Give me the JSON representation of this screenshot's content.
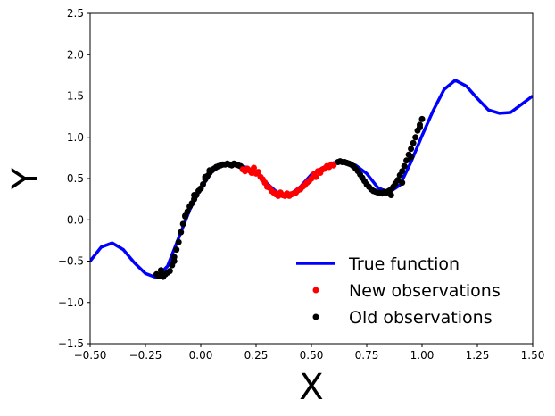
{
  "chart_data": {
    "type": "scatter",
    "title": "",
    "xlabel": "X",
    "ylabel": "Y",
    "xlim": [
      -0.5,
      1.5
    ],
    "ylim": [
      -1.5,
      2.5
    ],
    "xticks": [
      "−0.50",
      "−0.25",
      "0.00",
      "0.25",
      "0.50",
      "0.75",
      "1.00",
      "1.25",
      "1.50"
    ],
    "xtick_values": [
      -0.5,
      -0.25,
      0.0,
      0.25,
      0.5,
      0.75,
      1.0,
      1.25,
      1.5
    ],
    "yticks": [
      "−1.5",
      "−1.0",
      "−0.5",
      "0.0",
      "0.5",
      "1.0",
      "1.5",
      "2.0",
      "2.5"
    ],
    "ytick_values": [
      -1.5,
      -1.0,
      -0.5,
      0.0,
      0.5,
      1.0,
      1.5,
      2.0,
      2.5
    ],
    "grid": false,
    "legend_position": "lower-right",
    "series": [
      {
        "name": "True function",
        "kind": "line",
        "color": "#0000ff",
        "x": [
          -0.5,
          -0.45,
          -0.4,
          -0.35,
          -0.3,
          -0.25,
          -0.2,
          -0.15,
          -0.1,
          -0.05,
          0.0,
          0.05,
          0.1,
          0.15,
          0.2,
          0.25,
          0.3,
          0.35,
          0.4,
          0.45,
          0.5,
          0.55,
          0.6,
          0.65,
          0.7,
          0.75,
          0.8,
          0.85,
          0.9,
          0.95,
          1.0,
          1.05,
          1.1,
          1.15,
          1.2,
          1.25,
          1.3,
          1.35,
          1.4,
          1.45,
          1.5
        ],
        "y": [
          -0.5,
          -0.33,
          -0.28,
          -0.36,
          -0.52,
          -0.65,
          -0.7,
          -0.56,
          -0.22,
          0.12,
          0.38,
          0.58,
          0.67,
          0.67,
          0.64,
          0.57,
          0.44,
          0.32,
          0.3,
          0.4,
          0.55,
          0.63,
          0.69,
          0.7,
          0.66,
          0.56,
          0.39,
          0.33,
          0.42,
          0.7,
          1.02,
          1.32,
          1.58,
          1.69,
          1.62,
          1.47,
          1.33,
          1.29,
          1.3,
          1.4,
          1.5
        ]
      },
      {
        "name": "New observations",
        "kind": "scatter",
        "color": "#ff0000",
        "x": [
          0.19,
          0.2,
          0.21,
          0.22,
          0.23,
          0.24,
          0.25,
          0.26,
          0.27,
          0.28,
          0.29,
          0.3,
          0.31,
          0.32,
          0.33,
          0.34,
          0.35,
          0.36,
          0.37,
          0.38,
          0.39,
          0.4,
          0.41,
          0.42,
          0.43,
          0.44,
          0.45,
          0.46,
          0.47,
          0.48,
          0.49,
          0.5,
          0.51,
          0.52,
          0.53,
          0.54,
          0.55,
          0.56,
          0.57,
          0.58,
          0.59,
          0.6
        ],
        "y": [
          0.61,
          0.59,
          0.62,
          0.6,
          0.57,
          0.63,
          0.56,
          0.58,
          0.52,
          0.49,
          0.45,
          0.4,
          0.39,
          0.35,
          0.33,
          0.31,
          0.29,
          0.33,
          0.3,
          0.29,
          0.32,
          0.29,
          0.31,
          0.32,
          0.33,
          0.36,
          0.37,
          0.4,
          0.42,
          0.45,
          0.47,
          0.5,
          0.55,
          0.52,
          0.59,
          0.57,
          0.61,
          0.62,
          0.65,
          0.64,
          0.67,
          0.66
        ]
      },
      {
        "name": "Old observations",
        "kind": "scatter",
        "color": "#000000",
        "x": [
          -0.2,
          -0.19,
          -0.18,
          -0.17,
          -0.16,
          -0.15,
          -0.14,
          -0.13,
          -0.12,
          -0.11,
          -0.1,
          -0.09,
          -0.08,
          -0.07,
          -0.06,
          -0.05,
          -0.04,
          -0.03,
          -0.02,
          -0.01,
          0.0,
          0.01,
          0.02,
          0.03,
          0.04,
          0.05,
          0.06,
          0.07,
          0.08,
          0.09,
          0.1,
          0.11,
          0.12,
          0.13,
          0.14,
          0.15,
          0.16,
          0.17,
          0.18,
          0.62,
          0.63,
          0.64,
          0.65,
          0.66,
          0.67,
          0.68,
          0.69,
          0.7,
          0.71,
          0.72,
          0.73,
          0.74,
          0.75,
          0.76,
          0.77,
          0.78,
          0.79,
          0.8,
          0.81,
          0.82,
          0.83,
          0.84,
          0.85,
          0.86,
          0.87,
          0.88,
          0.89,
          0.9,
          0.91,
          0.92,
          0.93,
          0.94,
          0.95,
          0.96,
          0.97,
          0.98,
          0.99,
          1.0,
          -0.18,
          -0.12,
          -0.07,
          -0.03,
          0.02,
          0.04,
          0.86,
          0.91,
          0.95,
          0.99
        ],
        "y": [
          -0.66,
          -0.68,
          -0.67,
          -0.69,
          -0.66,
          -0.64,
          -0.62,
          -0.55,
          -0.45,
          -0.36,
          -0.27,
          -0.15,
          -0.05,
          0.04,
          0.1,
          0.16,
          0.2,
          0.25,
          0.3,
          0.35,
          0.38,
          0.43,
          0.49,
          0.53,
          0.57,
          0.6,
          0.62,
          0.64,
          0.65,
          0.66,
          0.67,
          0.67,
          0.68,
          0.67,
          0.66,
          0.68,
          0.67,
          0.66,
          0.65,
          0.7,
          0.71,
          0.7,
          0.7,
          0.69,
          0.68,
          0.67,
          0.65,
          0.62,
          0.59,
          0.55,
          0.51,
          0.47,
          0.43,
          0.4,
          0.37,
          0.35,
          0.34,
          0.33,
          0.33,
          0.32,
          0.34,
          0.33,
          0.35,
          0.37,
          0.4,
          0.44,
          0.48,
          0.54,
          0.59,
          0.65,
          0.72,
          0.79,
          0.86,
          0.93,
          1.0,
          1.08,
          1.15,
          1.22,
          -0.61,
          -0.5,
          0.05,
          0.3,
          0.52,
          0.6,
          0.3,
          0.45,
          0.76,
          1.12
        ]
      }
    ]
  }
}
